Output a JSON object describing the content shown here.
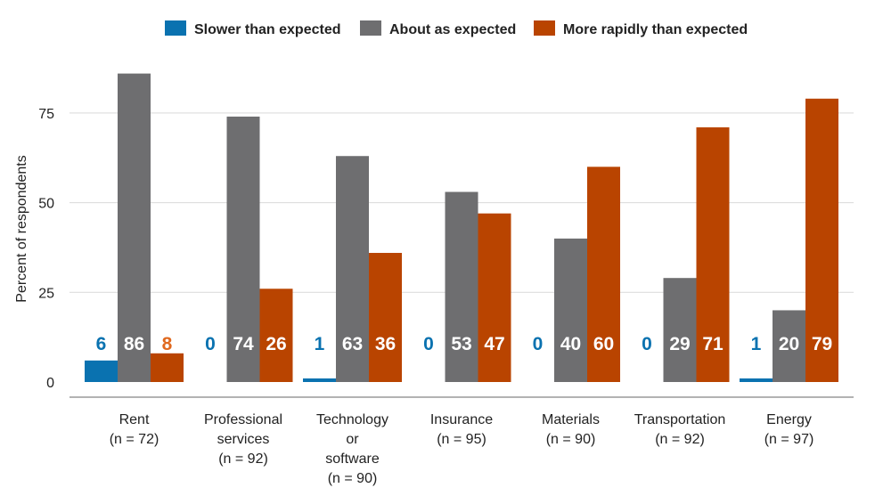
{
  "chart_data": {
    "type": "bar",
    "ylabel": "Percent of respondents",
    "ylim": [
      0,
      100
    ],
    "yticks": [
      0,
      25,
      50,
      75
    ],
    "grid": true,
    "legend_position": "top-center",
    "categories": [
      [
        "Rent",
        "(n = 72)"
      ],
      [
        "Professional",
        "services",
        "(n = 92)"
      ],
      [
        "Technology",
        "or",
        "software",
        "(n = 90)"
      ],
      [
        "Insurance",
        "(n = 95)"
      ],
      [
        "Materials",
        "(n = 90)"
      ],
      [
        "Transportation",
        "(n = 92)"
      ],
      [
        "Energy",
        "(n = 97)"
      ]
    ],
    "series": [
      {
        "name": "Slower than expected",
        "color": "#0a72b0",
        "label_color": "#0a72b0",
        "values": [
          6,
          0,
          1,
          0,
          0,
          0,
          1
        ]
      },
      {
        "name": "About as expected",
        "color": "#6e6e70",
        "label_color": "#ffffff",
        "values": [
          86,
          74,
          63,
          53,
          40,
          29,
          20
        ]
      },
      {
        "name": "More rapidly than expected",
        "color": "#b94400",
        "label_color": "#ffffff",
        "values": [
          8,
          26,
          36,
          47,
          60,
          71,
          79
        ]
      }
    ],
    "data_label_overrides": {
      "2_0": "#e0691f"
    }
  }
}
